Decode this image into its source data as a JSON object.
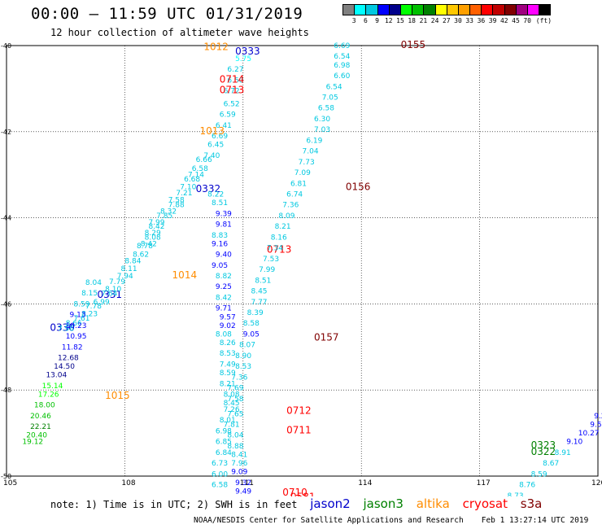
{
  "header": {
    "title": "00:00 – 11:59 UTC 01/31/2019",
    "subtitle": "12 hour collection of altimeter wave heights"
  },
  "legend": {
    "colors": [
      "#808080",
      "#00ffff",
      "#00c8e0",
      "#0000ff",
      "#00008b",
      "#00ff00",
      "#00c000",
      "#008000",
      "#ffff00",
      "#ffc800",
      "#ffa000",
      "#ff6000",
      "#ff0000",
      "#c00000",
      "#800000",
      "#a00080",
      "#ff00ff",
      "#000000"
    ],
    "labels": [
      "3",
      "6",
      "9",
      "12",
      "15",
      "18",
      "21",
      "24",
      "27",
      "30",
      "33",
      "36",
      "39",
      "42",
      "45",
      "70",
      "(ft)"
    ]
  },
  "axes": {
    "x_ticks": [
      "105",
      "108",
      "111",
      "114",
      "117",
      "120"
    ],
    "y_ticks": [
      "-40",
      "-42",
      "-44",
      "-46",
      "-48",
      "-50"
    ],
    "lon_range": [
      105,
      120
    ],
    "lat_range": [
      -50,
      -40
    ]
  },
  "chart_data": {
    "type": "scatter",
    "title": "00:00 – 11:59 UTC 01/31/2019",
    "xlabel": "",
    "ylabel": "",
    "xlim": [
      105,
      120
    ],
    "ylim": [
      -50,
      -40
    ],
    "grid": true,
    "tracks": [
      {
        "satellite": "jason2",
        "points": [
          [
            106.1,
            -46.57,
            "0330"
          ],
          [
            106.3,
            -46.57,
            "7.98"
          ],
          [
            106.5,
            -46.45,
            "8.66"
          ],
          [
            106.7,
            -46.33,
            "7.61"
          ],
          [
            106.9,
            -46.23,
            "8.23"
          ],
          [
            107.0,
            -46.05,
            "7.78"
          ],
          [
            107.2,
            -45.95,
            "6.99"
          ],
          [
            107.3,
            -45.8,
            "0331"
          ],
          [
            107.4,
            -45.76,
            "7.64"
          ],
          [
            107.5,
            -45.65,
            "8.10"
          ],
          [
            107.6,
            -45.48,
            "7.79"
          ],
          [
            107.8,
            -45.35,
            "7.94"
          ],
          [
            107.9,
            -45.18,
            "8.11"
          ],
          [
            108.0,
            -45.0,
            "8.84"
          ],
          [
            108.2,
            -44.85,
            "8.62"
          ],
          [
            108.3,
            -44.65,
            "8.78"
          ],
          [
            108.4,
            -44.6,
            "8.42"
          ],
          [
            108.5,
            -44.45,
            "8.08"
          ],
          [
            108.5,
            -44.35,
            "8.29"
          ],
          [
            108.6,
            -44.2,
            "8.42"
          ],
          [
            108.6,
            -44.1,
            "7.99"
          ],
          [
            108.8,
            -43.95,
            "7.85"
          ],
          [
            108.9,
            -43.85,
            "8.32"
          ],
          [
            109.1,
            -43.7,
            "7.88"
          ],
          [
            109.1,
            -43.58,
            "7.58"
          ],
          [
            109.3,
            -43.42,
            "7.21"
          ],
          [
            109.4,
            -43.28,
            "7.10"
          ],
          [
            109.5,
            -43.1,
            "6.68"
          ],
          [
            109.6,
            -43.0,
            "7.14"
          ],
          [
            109.7,
            -42.85,
            "6.58"
          ],
          [
            109.8,
            -42.65,
            "6.66"
          ],
          [
            110.0,
            -42.55,
            "7.40"
          ],
          [
            110.1,
            -42.3,
            "6.45"
          ],
          [
            110.2,
            -42.1,
            "6.69"
          ],
          [
            110.3,
            -41.85,
            "6.41"
          ],
          [
            110.4,
            -41.6,
            "6.59"
          ],
          [
            110.5,
            -41.35,
            "6.52"
          ],
          [
            110.5,
            -41.05,
            "6.72"
          ],
          [
            110.6,
            -40.8,
            "6.50"
          ],
          [
            110.6,
            -40.55,
            "6.27"
          ],
          [
            110.8,
            -40.3,
            "5.75"
          ],
          [
            110.8,
            -40.15,
            "0333"
          ],
          [
            109.8,
            -43.35,
            "0332"
          ],
          [
            110.1,
            -43.45,
            "8.22"
          ],
          [
            110.2,
            -43.65,
            "8.51"
          ],
          [
            110.3,
            -43.9,
            "9.39"
          ],
          [
            110.3,
            -44.15,
            "9.81"
          ],
          [
            110.2,
            -44.4,
            "8.83"
          ],
          [
            110.2,
            -44.6,
            "9.16"
          ],
          [
            110.3,
            -44.85,
            "9.40"
          ],
          [
            110.2,
            -45.1,
            "9.05"
          ],
          [
            110.3,
            -45.35,
            "8.82"
          ],
          [
            110.3,
            -45.6,
            "9.25"
          ],
          [
            110.3,
            -45.85,
            "8.42"
          ],
          [
            110.3,
            -46.1,
            "9.71"
          ],
          [
            110.4,
            -46.3,
            "9.57"
          ],
          [
            110.4,
            -46.5,
            "9.02"
          ],
          [
            110.3,
            -46.7,
            "8.08"
          ],
          [
            110.4,
            -46.9,
            "8.26"
          ],
          [
            110.4,
            -47.15,
            "8.53"
          ],
          [
            110.4,
            -47.4,
            "7.49"
          ],
          [
            110.4,
            -47.6,
            "8.59"
          ],
          [
            110.4,
            -47.85,
            "8.21"
          ],
          [
            110.5,
            -48.1,
            "8.08"
          ],
          [
            110.5,
            -48.3,
            "8.45"
          ],
          [
            110.6,
            -48.55,
            "7.65"
          ],
          [
            110.5,
            -48.8,
            "7.81"
          ],
          [
            110.6,
            -49.05,
            "8.04"
          ],
          [
            110.6,
            -49.3,
            "8.88"
          ],
          [
            110.7,
            -49.5,
            "8.41"
          ],
          [
            110.7,
            -49.7,
            "7.96"
          ],
          [
            110.7,
            -49.9,
            "9.09"
          ],
          [
            110.8,
            -50.15,
            "9.32"
          ],
          [
            110.8,
            -50.35,
            "9.49"
          ],
          [
            110.8,
            -50.55,
            "6.86"
          ]
        ]
      },
      {
        "satellite": "jason3",
        "points": [
          [
            105.4,
            -49.2,
            "19.12"
          ],
          [
            105.5,
            -49.05,
            "20.40"
          ],
          [
            105.6,
            -48.85,
            "22.21"
          ],
          [
            105.6,
            -48.6,
            "20.46"
          ],
          [
            105.7,
            -48.35,
            "18.00"
          ],
          [
            105.8,
            -48.1,
            "17.26"
          ],
          [
            105.9,
            -47.9,
            "15.14"
          ],
          [
            106.0,
            -47.65,
            "13.04"
          ],
          [
            106.2,
            -47.45,
            "14.50"
          ],
          [
            106.3,
            -47.25,
            "12.68"
          ],
          [
            106.4,
            -47.0,
            "11.82"
          ],
          [
            106.5,
            -46.75,
            "10.95"
          ],
          [
            106.5,
            -46.5,
            "10.23"
          ],
          [
            106.6,
            -46.25,
            "9.13"
          ],
          [
            106.7,
            -46.0,
            "8.59"
          ],
          [
            106.9,
            -45.75,
            "8.15"
          ],
          [
            107.0,
            -45.5,
            "8.04"
          ],
          [
            118.3,
            -49.45,
            "0322"
          ],
          [
            118.3,
            -49.3,
            "0323"
          ]
        ]
      },
      {
        "satellite": "altika",
        "points": [
          [
            107.5,
            -48.15,
            "1015"
          ],
          [
            109.2,
            -45.35,
            "1014"
          ],
          [
            109.9,
            -42.0,
            "1013"
          ],
          [
            110.0,
            -40.05,
            "1012"
          ]
        ]
      },
      {
        "satellite": "cryosat",
        "points": [
          [
            110.4,
            -40.8,
            "0714"
          ],
          [
            110.4,
            -41.05,
            "0713"
          ],
          [
            111.6,
            -44.75,
            "0713"
          ],
          [
            112.1,
            -48.5,
            "0712"
          ],
          [
            112.1,
            -48.95,
            "0711"
          ],
          [
            112.0,
            -50.4,
            "0710"
          ],
          [
            112.2,
            -50.5,
            "0581"
          ]
        ]
      },
      {
        "satellite": "s3a",
        "points": [
          [
            115.0,
            -40.0,
            "0155"
          ],
          [
            113.3,
            -40.0,
            "6.69"
          ],
          [
            113.3,
            -40.25,
            "6.54"
          ],
          [
            113.3,
            -40.45,
            "6.98"
          ],
          [
            113.3,
            -40.7,
            "6.60"
          ],
          [
            113.1,
            -40.95,
            "6.54"
          ],
          [
            113.0,
            -41.2,
            "7.05"
          ],
          [
            112.9,
            -41.45,
            "6.58"
          ],
          [
            112.8,
            -41.7,
            "6.30"
          ],
          [
            112.8,
            -41.95,
            "7.03"
          ],
          [
            112.6,
            -42.2,
            "6.19"
          ],
          [
            112.5,
            -42.45,
            "7.04"
          ],
          [
            112.4,
            -42.7,
            "7.73"
          ],
          [
            112.3,
            -42.95,
            "7.09"
          ],
          [
            112.2,
            -43.2,
            "6.81"
          ],
          [
            113.6,
            -43.3,
            "0156"
          ],
          [
            112.1,
            -43.45,
            "6.74"
          ],
          [
            112.0,
            -43.7,
            "7.36"
          ],
          [
            111.9,
            -43.95,
            "8.09"
          ],
          [
            111.8,
            -44.2,
            "8.21"
          ],
          [
            111.7,
            -44.45,
            "8.16"
          ],
          [
            111.6,
            -44.7,
            "7.34"
          ],
          [
            111.5,
            -44.95,
            "7.53"
          ],
          [
            111.4,
            -45.2,
            "7.99"
          ],
          [
            111.3,
            -45.45,
            "8.51"
          ],
          [
            111.2,
            -45.7,
            "8.45"
          ],
          [
            111.2,
            -45.95,
            "7.77"
          ],
          [
            111.1,
            -46.2,
            "8.39"
          ],
          [
            111.0,
            -46.45,
            "8.58"
          ],
          [
            111.0,
            -46.7,
            "9.05"
          ],
          [
            112.8,
            -46.8,
            "0157"
          ],
          [
            110.9,
            -46.95,
            "8.07"
          ],
          [
            110.8,
            -47.2,
            "8.90"
          ],
          [
            110.8,
            -47.45,
            "8.53"
          ],
          [
            110.7,
            -47.7,
            "7.36"
          ],
          [
            110.6,
            -47.95,
            "7.69"
          ],
          [
            110.6,
            -48.2,
            "7.58"
          ],
          [
            110.5,
            -48.45,
            "7.26"
          ],
          [
            110.4,
            -48.7,
            "8.01"
          ],
          [
            110.3,
            -48.95,
            "6.98"
          ],
          [
            110.3,
            -49.2,
            "6.85"
          ],
          [
            110.3,
            -49.45,
            "6.84"
          ],
          [
            110.2,
            -49.7,
            "6.73"
          ],
          [
            110.2,
            -49.95,
            "6.00"
          ],
          [
            110.2,
            -50.2,
            "6.58"
          ],
          [
            119.9,
            -48.6,
            "9.23"
          ],
          [
            119.8,
            -48.8,
            "9.58"
          ],
          [
            119.5,
            -49.0,
            "10.27"
          ],
          [
            119.2,
            -49.2,
            "9.10"
          ],
          [
            118.9,
            -49.45,
            "8.91"
          ],
          [
            118.6,
            -49.7,
            "8.67"
          ],
          [
            118.3,
            -49.95,
            "8.59"
          ],
          [
            118.0,
            -50.2,
            "8.76"
          ],
          [
            117.7,
            -50.45,
            "8.73"
          ],
          [
            117.3,
            -50.7,
            "7.99"
          ]
        ]
      }
    ]
  },
  "note": {
    "text": "note:  1) Time is in UTC; 2) SWH is in feet",
    "satellites": [
      {
        "name": "jason2",
        "color": "#0000cc"
      },
      {
        "name": "jason3",
        "color": "#008000"
      },
      {
        "name": "altika",
        "color": "#ff8c00"
      },
      {
        "name": "cryosat",
        "color": "#ff0000"
      },
      {
        "name": "s3a",
        "color": "#800000"
      }
    ]
  },
  "credit": "NOAA/NESDIS Center for Satellite Applications and Research",
  "timestamp": "Feb  1 13:27:14 UTC 2019"
}
